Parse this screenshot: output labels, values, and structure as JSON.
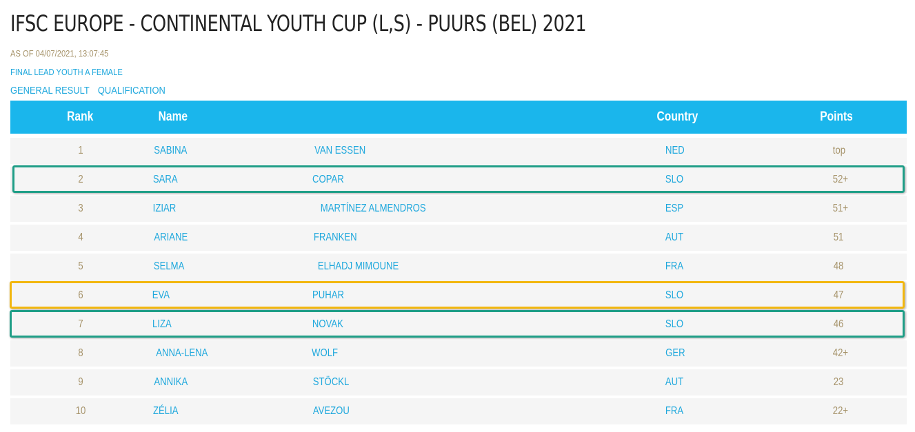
{
  "page": {
    "title": "IFSC EUROPE - CONTINENTAL YOUTH CUP (L,S) - PUURS (BEL) 2021",
    "timestamp": "AS OF 04/07/2021, 13:07:45",
    "event_link": "FINAL LEAD YOUTH A FEMALE",
    "subnav": [
      "GENERAL RESULT",
      "QUALIFICATION"
    ]
  },
  "table": {
    "headers": {
      "rank": "Rank",
      "name": "Name",
      "country": "Country",
      "points": "Points"
    },
    "rows": [
      {
        "rank": "1",
        "first": "SABINA",
        "last": "VAN ESSEN",
        "country": "NED",
        "points": "top"
      },
      {
        "rank": "2",
        "first": "SARA",
        "last": "COPAR",
        "country": "SLO",
        "points": "52+"
      },
      {
        "rank": "3",
        "first": "IZIAR",
        "last": "MARTÍNEZ ALMENDROS",
        "country": "ESP",
        "points": "51+"
      },
      {
        "rank": "4",
        "first": "ARIANE",
        "last": "FRANKEN",
        "country": "AUT",
        "points": "51"
      },
      {
        "rank": "5",
        "first": "SELMA",
        "last": "ELHADJ MIMOUNE",
        "country": "FRA",
        "points": "48"
      },
      {
        "rank": "6",
        "first": "EVA",
        "last": "PUHAR",
        "country": "SLO",
        "points": "47"
      },
      {
        "rank": "7",
        "first": "LIZA",
        "last": "NOVAK",
        "country": "SLO",
        "points": "46"
      },
      {
        "rank": "8",
        "first": "ANNA-LENA",
        "last": "WOLF",
        "country": "GER",
        "points": "42+"
      },
      {
        "rank": "9",
        "first": "ANNIKA",
        "last": "STÖCKL",
        "country": "AUT",
        "points": "23"
      },
      {
        "rank": "10",
        "first": "ZÉLIA",
        "last": "AVEZOU",
        "country": "FRA",
        "points": "22+"
      }
    ]
  },
  "highlights": [
    {
      "row": 2,
      "color": "#1f9e87"
    },
    {
      "row": 6,
      "color": "#f2b70f"
    },
    {
      "row": 7,
      "color": "#1f9e87"
    }
  ],
  "colors": {
    "header_bg": "#1ab6ec",
    "link": "#1fa8dd",
    "gold_text": "#a6936a",
    "row_bg": "#f5f5f5"
  }
}
